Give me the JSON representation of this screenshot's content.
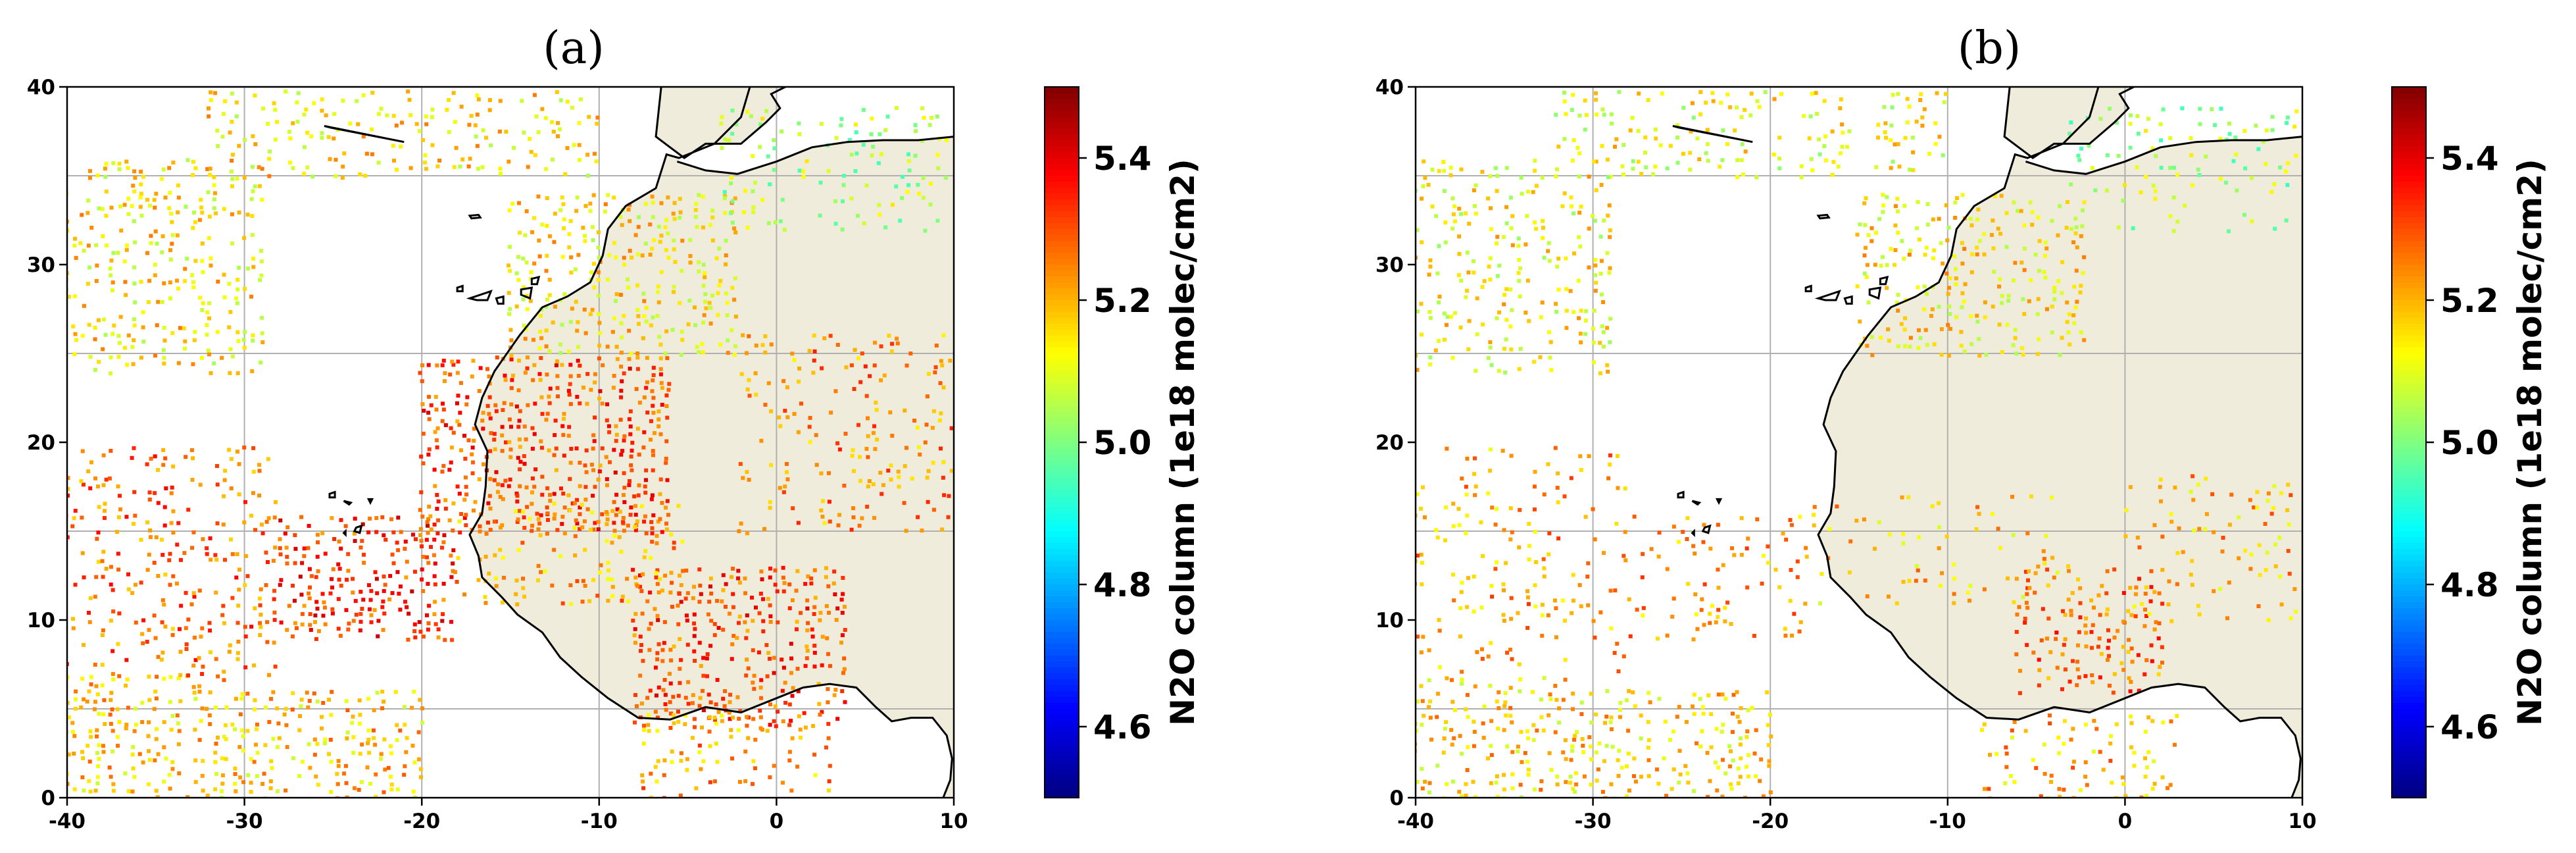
{
  "chart_data": [
    {
      "type": "scatter",
      "title": "(a)",
      "xlim": [
        -40,
        10
      ],
      "ylim": [
        0,
        40
      ],
      "x_ticks": [
        -40,
        -30,
        -20,
        -10,
        0,
        10
      ],
      "y_ticks": [
        0,
        10,
        20,
        30,
        40
      ],
      "grid_lines_x": [
        -40,
        -30,
        -20,
        -10,
        0,
        10
      ],
      "grid_lines_y": [
        5,
        15,
        25,
        35
      ],
      "grid": true,
      "land_color": "#efecdc",
      "colorbar": {
        "label": "N2O column (1e18 molec/cm2)",
        "range": [
          4.5,
          5.5
        ],
        "ticks": [
          "4.6",
          "4.8",
          "5.0",
          "5.2",
          "5.4"
        ],
        "tick_values": [
          4.6,
          4.8,
          5.0,
          5.2,
          5.4
        ],
        "colormap": "jet"
      },
      "clusters": [
        {
          "region": [
            -40,
            -29,
            24,
            36
          ],
          "mean": 5.15,
          "density": 0.6
        },
        {
          "region": [
            -40,
            -31,
            0,
            7
          ],
          "mean": 5.18,
          "density": 0.8
        },
        {
          "region": [
            -31,
            -20,
            0,
            6
          ],
          "mean": 5.18,
          "density": 0.75
        },
        {
          "region": [
            -40,
            -28,
            7,
            20
          ],
          "mean": 5.27,
          "density": 0.5
        },
        {
          "region": [
            -28,
            -18,
            9,
            16
          ],
          "mean": 5.32,
          "density": 0.9
        },
        {
          "region": [
            -20,
            -6,
            15,
            25
          ],
          "mean": 5.3,
          "density": 0.9
        },
        {
          "region": [
            -15,
            -2,
            25,
            34
          ],
          "mean": 5.15,
          "density": 0.7
        },
        {
          "region": [
            -8,
            4,
            4,
            13
          ],
          "mean": 5.3,
          "density": 0.9
        },
        {
          "region": [
            -18,
            -5,
            11,
            17
          ],
          "mean": 5.22,
          "density": 0.5
        },
        {
          "region": [
            -32,
            -10,
            35,
            40
          ],
          "mean": 5.15,
          "density": 0.5
        },
        {
          "region": [
            -2,
            10,
            15,
            26
          ],
          "mean": 5.24,
          "density": 0.35
        },
        {
          "region": [
            -3,
            10,
            32,
            39
          ],
          "mean": 5.05,
          "density": 0.4
        },
        {
          "region": [
            -8,
            3,
            0,
            5
          ],
          "mean": 5.22,
          "density": 0.5
        }
      ]
    },
    {
      "type": "scatter",
      "title": "(b)",
      "xlim": [
        -40,
        10
      ],
      "ylim": [
        0,
        40
      ],
      "x_ticks": [
        -40,
        -30,
        -20,
        -10,
        0,
        10
      ],
      "y_ticks": [
        0,
        10,
        20,
        30,
        40
      ],
      "grid_lines_x": [
        -40,
        -30,
        -20,
        -10,
        0,
        10
      ],
      "grid_lines_y": [
        5,
        15,
        25,
        35
      ],
      "grid": true,
      "land_color": "#efecdc",
      "colorbar": {
        "label": "N2O column (1e18 molec/cm2)",
        "range": [
          4.5,
          5.5
        ],
        "ticks": [
          "4.6",
          "4.8",
          "5.0",
          "5.2",
          "5.4"
        ],
        "tick_values": [
          4.6,
          4.8,
          5.0,
          5.2,
          5.4
        ],
        "colormap": "jet"
      },
      "clusters": [
        {
          "region": [
            -40,
            -29,
            24,
            36
          ],
          "mean": 5.13,
          "density": 0.55
        },
        {
          "region": [
            -40,
            -31,
            0,
            7
          ],
          "mean": 5.17,
          "density": 0.7
        },
        {
          "region": [
            -31,
            -20,
            0,
            6
          ],
          "mean": 5.17,
          "density": 0.6
        },
        {
          "region": [
            -40,
            -28,
            7,
            20
          ],
          "mean": 5.22,
          "density": 0.35
        },
        {
          "region": [
            -28,
            -18,
            9,
            16
          ],
          "mean": 5.22,
          "density": 0.35
        },
        {
          "region": [
            -15,
            -2,
            25,
            34
          ],
          "mean": 5.15,
          "density": 0.6
        },
        {
          "region": [
            -6,
            2,
            6,
            13
          ],
          "mean": 5.27,
          "density": 0.7
        },
        {
          "region": [
            -18,
            -3,
            11,
            17
          ],
          "mean": 5.18,
          "density": 0.25
        },
        {
          "region": [
            -32,
            -10,
            35,
            40
          ],
          "mean": 5.12,
          "density": 0.45
        },
        {
          "region": [
            -3,
            10,
            32,
            39
          ],
          "mean": 5.04,
          "density": 0.35
        },
        {
          "region": [
            0,
            10,
            10,
            18
          ],
          "mean": 5.2,
          "density": 0.3
        },
        {
          "region": [
            -8,
            3,
            0,
            5
          ],
          "mean": 5.2,
          "density": 0.45
        }
      ]
    }
  ]
}
